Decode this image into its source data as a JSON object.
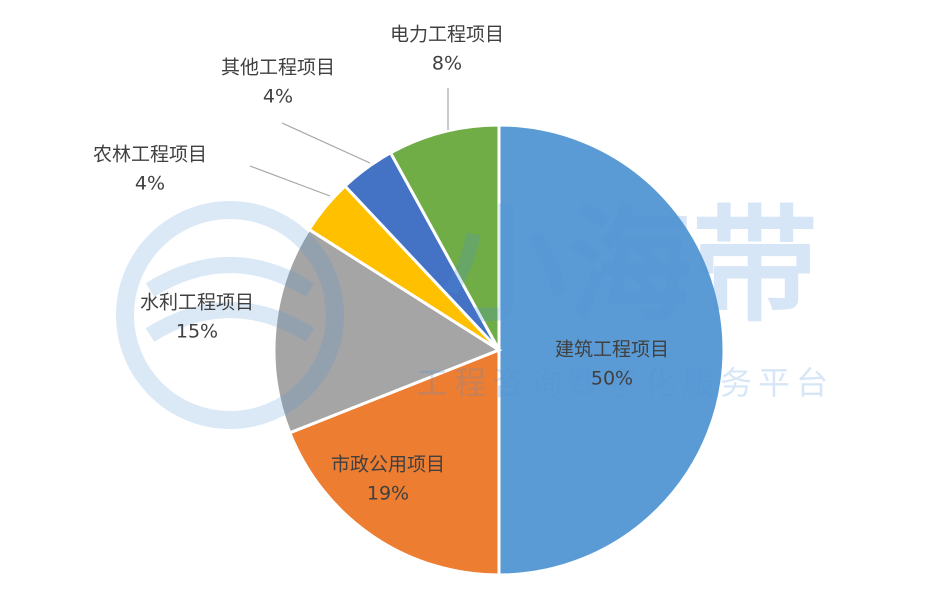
{
  "chart_data": {
    "type": "pie",
    "categories": [
      "建筑工程项目",
      "市政公用项目",
      "水利工程项目",
      "农林工程项目",
      "其他工程项目",
      "电力工程项目"
    ],
    "values": [
      50,
      19,
      15,
      4,
      4,
      8
    ],
    "value_labels": [
      "50%",
      "19%",
      "15%",
      "4%",
      "4%",
      "8%"
    ],
    "colors": [
      "#5b9bd5",
      "#ed7d31",
      "#a5a5a5",
      "#ffc000",
      "#4472c4",
      "#70ad47"
    ]
  },
  "watermark": {
    "title": "小海带",
    "subtitle": "工程咨询数字化服务平台"
  }
}
